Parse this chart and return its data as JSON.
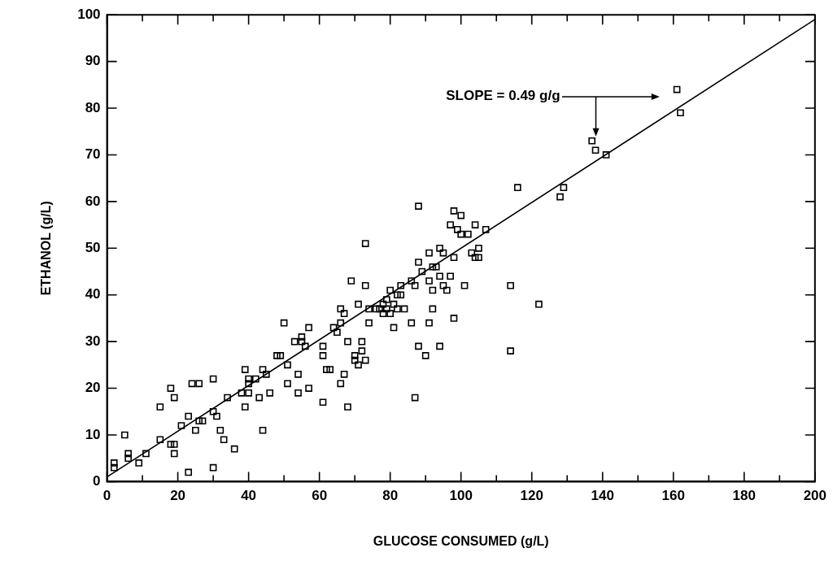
{
  "chart_data": {
    "type": "scatter",
    "xlabel": "GLUCOSE CONSUMED (g/L)",
    "ylabel": "ETHANOL (g/L)",
    "xlim": [
      0,
      200
    ],
    "ylim": [
      0,
      100
    ],
    "xticks": [
      0,
      {
        "value": 10,
        "label": null
      },
      20,
      {
        "value": 30,
        "label": null
      },
      40,
      {
        "value": 50,
        "label": null
      },
      60,
      {
        "value": 70,
        "label": null
      },
      80,
      {
        "value": 90,
        "label": null
      },
      100,
      {
        "value": 110,
        "label": null
      },
      120,
      {
        "value": 130,
        "label": null
      },
      140,
      {
        "value": 150,
        "label": null
      },
      160,
      {
        "value": 170,
        "label": null
      },
      180,
      {
        "value": 190,
        "label": null
      },
      200
    ],
    "yticks": [
      0,
      10,
      20,
      30,
      40,
      50,
      60,
      70,
      80,
      90,
      100
    ],
    "grid": false,
    "legend": false,
    "marker": "square",
    "series": [
      {
        "type": "scatter",
        "color": "#000000",
        "x": [
          2,
          2,
          5,
          6,
          6,
          9,
          11,
          15,
          15,
          18,
          18,
          19,
          19,
          19,
          21,
          23,
          23,
          24,
          25,
          26,
          26,
          27,
          30,
          30,
          30,
          31,
          32,
          33,
          34,
          36,
          38,
          39,
          39,
          40,
          40,
          40,
          42,
          43,
          44,
          44,
          45,
          46,
          48,
          49,
          50,
          51,
          51,
          53,
          54,
          54,
          55,
          55,
          56,
          57,
          57,
          61,
          61,
          61,
          62,
          63,
          64,
          65,
          66,
          66,
          66,
          67,
          67,
          68,
          68,
          69,
          70,
          70,
          71,
          71,
          72,
          72,
          73,
          73,
          73,
          74,
          74,
          76,
          77,
          78,
          78,
          79,
          79,
          80,
          80,
          81,
          81,
          82,
          82,
          83,
          83,
          84,
          86,
          86,
          87,
          87,
          88,
          88,
          88,
          89,
          90,
          91,
          91,
          91,
          92,
          92,
          92,
          93,
          94,
          94,
          94,
          95,
          95,
          96,
          97,
          97,
          98,
          98,
          98,
          99,
          100,
          100,
          101,
          102,
          103,
          104,
          104,
          105,
          105,
          107,
          114,
          114,
          116,
          122,
          128,
          129,
          137,
          138,
          141,
          161,
          162
        ],
        "values": [
          3,
          4,
          10,
          5,
          6,
          4,
          6,
          16,
          9,
          8,
          20,
          18,
          6,
          8,
          12,
          2,
          14,
          21,
          11,
          21,
          13,
          13,
          15,
          22,
          3,
          14,
          11,
          9,
          18,
          7,
          19,
          16,
          24,
          22,
          21,
          19,
          22,
          18,
          24,
          11,
          23,
          19,
          27,
          27,
          34,
          25,
          21,
          30,
          23,
          19,
          31,
          30,
          29,
          33,
          20,
          27,
          29,
          17,
          24,
          24,
          33,
          32,
          37,
          34,
          21,
          23,
          36,
          30,
          16,
          43,
          26,
          27,
          25,
          38,
          28,
          30,
          51,
          42,
          26,
          37,
          34,
          37,
          37,
          36,
          38,
          39,
          37,
          41,
          36,
          33,
          38,
          37,
          40,
          42,
          40,
          37,
          34,
          43,
          18,
          42,
          59,
          29,
          47,
          45,
          27,
          49,
          43,
          34,
          37,
          41,
          46,
          46,
          50,
          44,
          29,
          49,
          42,
          41,
          55,
          44,
          58,
          35,
          48,
          54,
          53,
          57,
          42,
          53,
          49,
          55,
          48,
          48,
          50,
          54,
          42,
          28,
          63,
          38,
          61,
          63,
          73,
          71,
          70,
          84,
          79
        ]
      },
      {
        "type": "line",
        "color": "#000000",
        "marker": "none",
        "x": [
          0,
          200
        ],
        "values": [
          1,
          99
        ]
      }
    ],
    "annotations": [
      "SLOPE = 0.49 g/g"
    ]
  }
}
